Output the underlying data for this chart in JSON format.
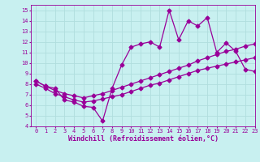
{
  "xlabel": "Windchill (Refroidissement éolien,°C)",
  "bg_color": "#c8f0f0",
  "line_color": "#990099",
  "grid_color": "#b0dede",
  "xlim": [
    -0.5,
    23
  ],
  "ylim": [
    4,
    15.5
  ],
  "xticks": [
    0,
    1,
    2,
    3,
    4,
    5,
    6,
    7,
    8,
    9,
    10,
    11,
    12,
    13,
    14,
    15,
    16,
    17,
    18,
    19,
    20,
    21,
    22,
    23
  ],
  "yticks": [
    4,
    5,
    6,
    7,
    8,
    9,
    10,
    11,
    12,
    13,
    14,
    15
  ],
  "line1_x": [
    0,
    1,
    2,
    3,
    4,
    5,
    6,
    7,
    8,
    9,
    10,
    11,
    12,
    13,
    14,
    15,
    16,
    17,
    18,
    19,
    20,
    21,
    22,
    23
  ],
  "line1_y": [
    8.3,
    7.8,
    7.6,
    6.5,
    6.3,
    5.9,
    5.8,
    4.5,
    7.6,
    9.8,
    11.5,
    11.8,
    12.0,
    11.5,
    15.0,
    12.2,
    14.0,
    13.5,
    14.3,
    11.0,
    11.9,
    11.1,
    9.4,
    9.2
  ],
  "line2_x": [
    0,
    1,
    2,
    3,
    4,
    5,
    6,
    7,
    8,
    9,
    10,
    11,
    12,
    13,
    14,
    15,
    16,
    17,
    18,
    19,
    20,
    21,
    22,
    23
  ],
  "line2_y": [
    8.3,
    7.8,
    7.4,
    7.1,
    6.9,
    6.7,
    6.9,
    7.1,
    7.4,
    7.7,
    8.0,
    8.3,
    8.6,
    8.9,
    9.2,
    9.5,
    9.8,
    10.2,
    10.5,
    10.8,
    11.1,
    11.3,
    11.6,
    11.8
  ],
  "line3_x": [
    0,
    1,
    2,
    3,
    4,
    5,
    6,
    7,
    8,
    9,
    10,
    11,
    12,
    13,
    14,
    15,
    16,
    17,
    18,
    19,
    20,
    21,
    22,
    23
  ],
  "line3_y": [
    8.0,
    7.6,
    7.1,
    6.8,
    6.5,
    6.3,
    6.4,
    6.6,
    6.8,
    7.0,
    7.3,
    7.6,
    7.9,
    8.1,
    8.4,
    8.7,
    9.0,
    9.3,
    9.5,
    9.7,
    9.9,
    10.1,
    10.3,
    10.5
  ],
  "marker": "D",
  "markersize": 2.5,
  "linewidth": 0.9,
  "label_fontsize": 6,
  "tick_fontsize": 5
}
